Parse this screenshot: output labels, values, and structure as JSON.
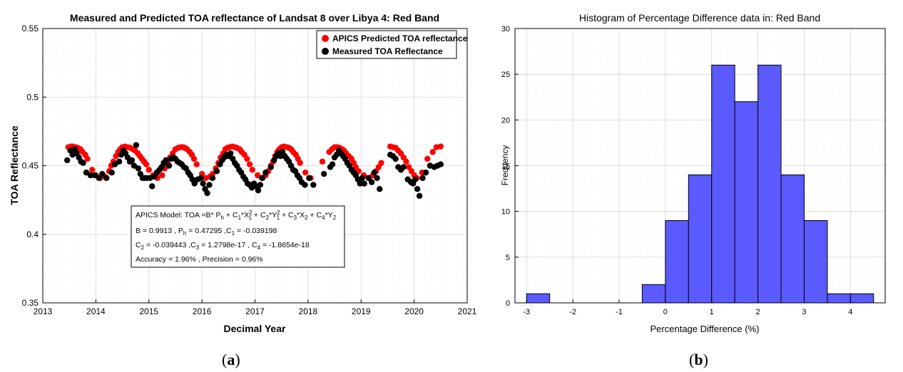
{
  "chart_data": [
    {
      "type": "scatter",
      "panel_label": "a",
      "title": "Measured and Predicted TOA reflectance of Landsat 8 over Libya 4: Red Band",
      "xlabel": "Decimal Year",
      "ylabel": "TOA Reflectance",
      "xlim": [
        2013,
        2021
      ],
      "ylim": [
        0.35,
        0.55
      ],
      "xticks": [
        "2013",
        "2014",
        "2015",
        "2016",
        "2017",
        "2018",
        "2019",
        "2020",
        "2021"
      ],
      "yticks": [
        "0.35",
        "0.4",
        "0.45",
        "0.5",
        "0.55"
      ],
      "grid": true,
      "legend_position": "top-right",
      "series": [
        {
          "name": "APICS Predicted TOA reflectance",
          "color": "#ff0000",
          "x": [
            2013.48,
            2013.53,
            2013.57,
            2013.62,
            2013.66,
            2013.71,
            2013.75,
            2013.8,
            2013.84,
            2013.93,
            2014.0,
            2014.08,
            2014.17,
            2014.25,
            2014.29,
            2014.33,
            2014.38,
            2014.42,
            2014.46,
            2014.5,
            2014.55,
            2014.6,
            2014.65,
            2014.7,
            2014.74,
            2014.79,
            2014.83,
            2014.87,
            2014.91,
            2014.95,
            2015.0,
            2015.08,
            2015.16,
            2015.25,
            2015.3,
            2015.35,
            2015.4,
            2015.45,
            2015.5,
            2015.55,
            2015.6,
            2015.64,
            2015.68,
            2015.72,
            2015.77,
            2015.81,
            2015.85,
            2015.9,
            2016.0,
            2016.07,
            2016.15,
            2016.2,
            2016.26,
            2016.31,
            2016.35,
            2016.4,
            2016.44,
            2016.48,
            2016.52,
            2016.57,
            2016.62,
            2016.66,
            2016.71,
            2016.75,
            2016.8,
            2016.85,
            2016.9,
            2016.95,
            2017.05,
            2017.13,
            2017.2,
            2017.25,
            2017.3,
            2017.34,
            2017.38,
            2017.42,
            2017.46,
            2017.5,
            2017.55,
            2017.6,
            2017.64,
            2017.68,
            2017.72,
            2017.77,
            2017.81,
            2017.85,
            2017.95,
            2018.05,
            2018.27,
            2018.4,
            2018.45,
            2018.5,
            2018.55,
            2018.6,
            2018.64,
            2018.68,
            2018.72,
            2018.77,
            2018.82,
            2018.86,
            2018.9,
            2018.95,
            2019.05,
            2019.15,
            2019.22,
            2019.28,
            2019.33,
            2019.38,
            2019.55,
            2019.6,
            2019.65,
            2019.7,
            2019.75,
            2019.8,
            2019.85,
            2019.9,
            2019.95,
            2020.0,
            2020.05,
            2020.15,
            2020.25,
            2020.35,
            2020.42,
            2020.5
          ],
          "y": [
            0.4635,
            0.464,
            0.464,
            0.4635,
            0.463,
            0.462,
            0.46,
            0.458,
            0.455,
            0.447,
            0.443,
            0.441,
            0.442,
            0.446,
            0.45,
            0.453,
            0.457,
            0.46,
            0.462,
            0.4635,
            0.464,
            0.4635,
            0.463,
            0.462,
            0.461,
            0.459,
            0.457,
            0.455,
            0.453,
            0.451,
            0.447,
            0.443,
            0.441,
            0.443,
            0.448,
            0.452,
            0.456,
            0.459,
            0.462,
            0.463,
            0.4635,
            0.4635,
            0.463,
            0.462,
            0.46,
            0.458,
            0.455,
            0.451,
            0.444,
            0.441,
            0.442,
            0.444,
            0.448,
            0.452,
            0.456,
            0.459,
            0.462,
            0.463,
            0.4635,
            0.464,
            0.4635,
            0.463,
            0.462,
            0.46,
            0.458,
            0.455,
            0.451,
            0.447,
            0.443,
            0.441,
            0.443,
            0.446,
            0.45,
            0.453,
            0.457,
            0.46,
            0.462,
            0.4635,
            0.464,
            0.4635,
            0.463,
            0.462,
            0.46,
            0.458,
            0.455,
            0.452,
            0.445,
            0.441,
            0.453,
            0.46,
            0.462,
            0.4635,
            0.4635,
            0.463,
            0.462,
            0.461,
            0.459,
            0.457,
            0.455,
            0.452,
            0.449,
            0.446,
            0.443,
            0.441,
            0.443,
            0.446,
            0.449,
            0.452,
            0.464,
            0.4635,
            0.463,
            0.461,
            0.459,
            0.456,
            0.453,
            0.449,
            0.446,
            0.443,
            0.441,
            0.445,
            0.455,
            0.46,
            0.4635,
            0.464
          ]
        },
        {
          "name": "Measured TOA Reflectance",
          "color": "#000000",
          "x": [
            2013.46,
            2013.52,
            2013.56,
            2013.6,
            2013.64,
            2013.68,
            2013.72,
            2013.76,
            2013.82,
            2013.9,
            2013.98,
            2014.06,
            2014.12,
            2014.2,
            2014.3,
            2014.36,
            2014.44,
            2014.48,
            2014.52,
            2014.56,
            2014.6,
            2014.64,
            2014.68,
            2014.72,
            2014.76,
            2014.8,
            2014.84,
            2014.88,
            2014.92,
            2014.96,
            2015.02,
            2015.06,
            2015.1,
            2015.15,
            2015.2,
            2015.24,
            2015.28,
            2015.32,
            2015.38,
            2015.42,
            2015.46,
            2015.5,
            2015.54,
            2015.58,
            2015.62,
            2015.66,
            2015.7,
            2015.74,
            2015.78,
            2015.82,
            2015.86,
            2015.92,
            2015.98,
            2016.02,
            2016.06,
            2016.1,
            2016.14,
            2016.2,
            2016.28,
            2016.34,
            2016.38,
            2016.42,
            2016.46,
            2016.5,
            2016.54,
            2016.58,
            2016.62,
            2016.66,
            2016.7,
            2016.74,
            2016.78,
            2016.82,
            2016.86,
            2016.9,
            2016.94,
            2016.98,
            2017.02,
            2017.06,
            2017.1,
            2017.14,
            2017.2,
            2017.3,
            2017.36,
            2017.4,
            2017.44,
            2017.48,
            2017.52,
            2017.56,
            2017.6,
            2017.64,
            2017.68,
            2017.72,
            2017.76,
            2017.8,
            2017.84,
            2017.88,
            2017.94,
            2018.02,
            2018.1,
            2018.3,
            2018.42,
            2018.46,
            2018.5,
            2018.54,
            2018.58,
            2018.62,
            2018.66,
            2018.7,
            2018.74,
            2018.78,
            2018.82,
            2018.86,
            2018.9,
            2018.94,
            2018.98,
            2019.02,
            2019.06,
            2019.14,
            2019.2,
            2019.25,
            2019.3,
            2019.35,
            2019.55,
            2019.6,
            2019.65,
            2019.7,
            2019.75,
            2019.8,
            2019.88,
            2019.94,
            2019.98,
            2020.02,
            2020.06,
            2020.1,
            2020.16,
            2020.22,
            2020.3,
            2020.38,
            2020.44,
            2020.5
          ],
          "y": [
            0.454,
            0.461,
            0.458,
            0.462,
            0.459,
            0.456,
            0.453,
            0.452,
            0.445,
            0.443,
            0.443,
            0.441,
            0.444,
            0.441,
            0.445,
            0.451,
            0.453,
            0.458,
            0.461,
            0.459,
            0.456,
            0.453,
            0.454,
            0.45,
            0.465,
            0.448,
            0.444,
            0.441,
            0.441,
            0.441,
            0.441,
            0.435,
            0.442,
            0.445,
            0.447,
            0.449,
            0.452,
            0.454,
            0.45,
            0.455,
            0.456,
            0.455,
            0.453,
            0.452,
            0.451,
            0.449,
            0.448,
            0.445,
            0.443,
            0.44,
            0.437,
            0.44,
            0.441,
            0.437,
            0.433,
            0.43,
            0.436,
            0.441,
            0.446,
            0.451,
            0.454,
            0.456,
            0.458,
            0.457,
            0.459,
            0.455,
            0.452,
            0.45,
            0.447,
            0.445,
            0.442,
            0.44,
            0.437,
            0.436,
            0.434,
            0.437,
            0.435,
            0.432,
            0.436,
            0.441,
            0.445,
            0.449,
            0.454,
            0.457,
            0.459,
            0.457,
            0.46,
            0.457,
            0.455,
            0.453,
            0.45,
            0.447,
            0.446,
            0.443,
            0.441,
            0.438,
            0.436,
            0.441,
            0.436,
            0.444,
            0.449,
            0.451,
            0.456,
            0.458,
            0.461,
            0.459,
            0.457,
            0.455,
            0.452,
            0.45,
            0.447,
            0.445,
            0.443,
            0.44,
            0.437,
            0.441,
            0.437,
            0.441,
            0.438,
            0.445,
            0.441,
            0.433,
            0.458,
            0.457,
            0.455,
            0.449,
            0.447,
            0.449,
            0.44,
            0.438,
            0.437,
            0.44,
            0.433,
            0.428,
            0.441,
            0.445,
            0.45,
            0.449,
            0.45,
            0.451
          ]
        }
      ],
      "annotation_box": {
        "model_prefix": "APICS Model: TOA =B* P",
        "model_h": "h",
        "model_plus1": " + C",
        "model_s1": "1",
        "model_x": "*X",
        "model_sup2a": "2",
        "model_sub1a": "1",
        "model_plus2": " + C",
        "model_s2": "2",
        "model_y": "*Y",
        "model_sup2b": "2",
        "model_sub1b": "1",
        "model_plus3": " + C",
        "model_s3": "3",
        "model_x2": "*X",
        "model_s2b": "2",
        "model_plus4": " + C",
        "model_s4": "4",
        "model_y2": "*Y",
        "model_s2c": "2",
        "line2_B": "B  = 0.9913 ,  P",
        "line2_h": "h",
        "line2_ph": " = 0.47295 ,C",
        "line2_c1s": "1",
        "line2_c1": " = -0.039198",
        "line3_C": "C",
        "line3_c2s": "2",
        "line3_c2": " = -0.039443 ,C",
        "line3_c3s": "3",
        "line3_c3": " = 1.2798e-17 ,  C",
        "line3_c4s": "4",
        "line3_c4": " = -1.8654e-18",
        "line4": "Accuracy = 1.96% , Precision = 0.96%"
      }
    },
    {
      "type": "bar",
      "subtype": "histogram",
      "panel_label": "b",
      "title": "Histogram of Percentage Difference data in: Red Band",
      "xlabel": "Percentage Difference (%)",
      "ylabel": "Frequency",
      "xlim": [
        -3.25,
        4.75
      ],
      "ylim": [
        0,
        30
      ],
      "xticks": [
        "-3",
        "-2",
        "-1",
        "0",
        "1",
        "2",
        "3",
        "4"
      ],
      "yticks": [
        "0",
        "5",
        "10",
        "15",
        "20",
        "25",
        "30"
      ],
      "grid": true,
      "bar_color": "#5a5aff",
      "bin_edges": [
        -3,
        -2.5,
        -2,
        -1.5,
        -1,
        -0.5,
        0,
        0.5,
        1,
        1.5,
        2,
        2.5,
        3,
        3.5,
        4,
        4.5
      ],
      "values": [
        1,
        0,
        0,
        0,
        0,
        2,
        9,
        14,
        26,
        22,
        26,
        14,
        9,
        1,
        1
      ]
    }
  ]
}
